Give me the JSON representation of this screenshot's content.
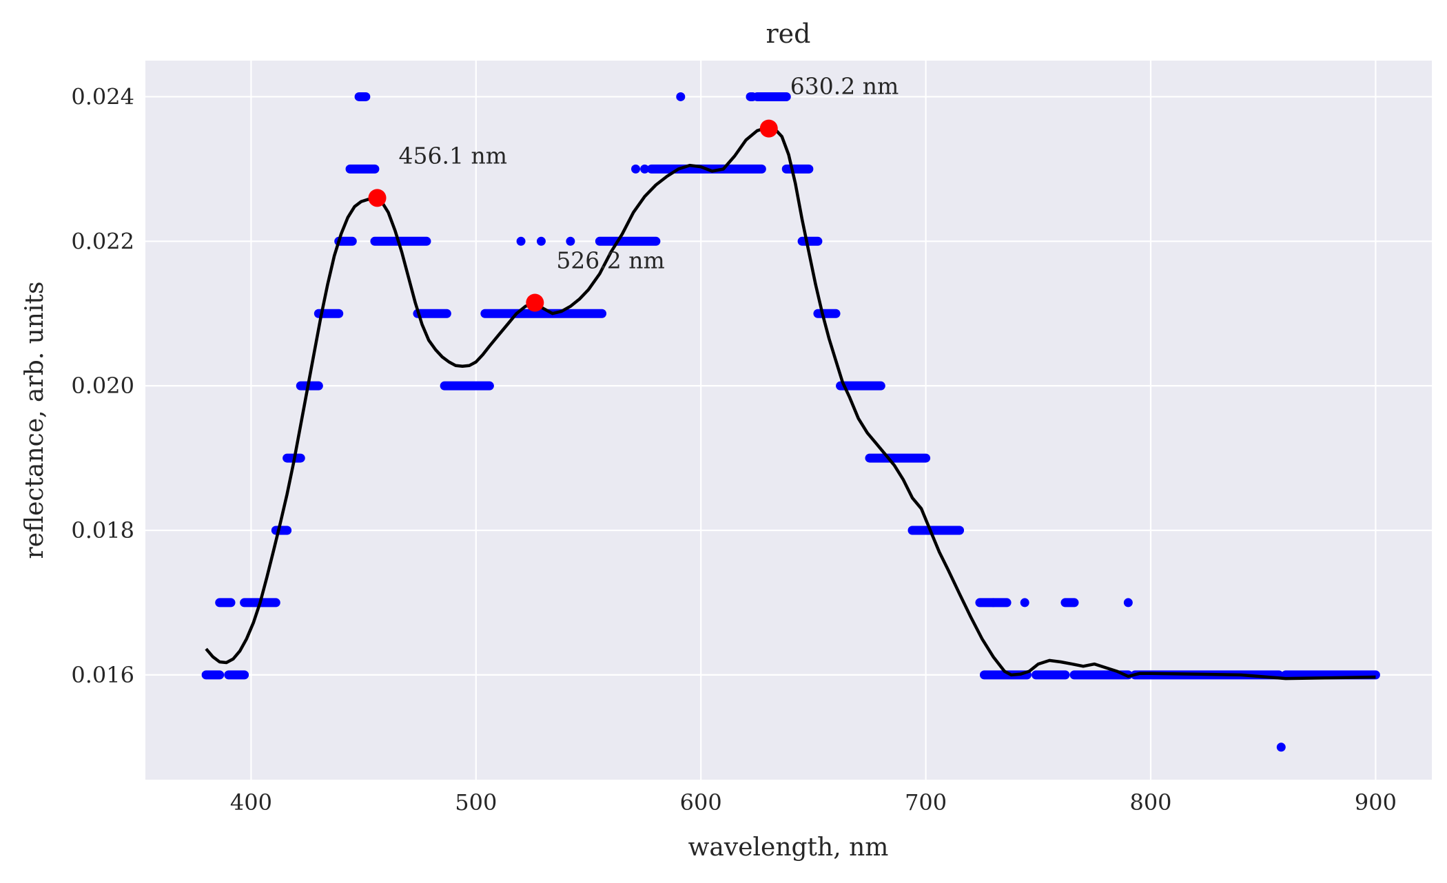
{
  "chart_data": {
    "type": "scatter",
    "title": "red",
    "xlabel": "wavelength, nm",
    "ylabel": "reflectance, arb. units",
    "xlim": [
      353,
      925
    ],
    "ylim": [
      0.01455,
      0.0245
    ],
    "xticks": [
      400,
      500,
      600,
      700,
      800,
      900
    ],
    "yticks": [
      0.016,
      0.018,
      0.02,
      0.022,
      0.024
    ],
    "xtick_labels": [
      "400",
      "500",
      "600",
      "700",
      "800",
      "900"
    ],
    "ytick_labels": [
      "0.016",
      "0.018",
      "0.020",
      "0.022",
      "0.024"
    ],
    "grid": true,
    "colors": {
      "background": "#eaeaf2",
      "grid": "#ffffff",
      "measured": "#0000ff",
      "smoothed": "#000000",
      "peaks": "#ff0000",
      "text": "#262626"
    },
    "measured_segments": [
      {
        "y": 0.016,
        "ranges": [
          [
            380,
            386
          ],
          [
            390,
            397
          ],
          [
            726,
            745
          ],
          [
            749,
            762
          ],
          [
            766,
            790
          ],
          [
            793,
            857
          ],
          [
            860,
            900
          ]
        ]
      },
      {
        "y": 0.017,
        "ranges": [
          [
            386,
            391
          ],
          [
            397,
            411
          ],
          [
            724,
            736
          ],
          [
            762,
            766
          ]
        ]
      },
      {
        "y": 0.018,
        "ranges": [
          [
            411,
            416
          ],
          [
            694,
            715
          ]
        ]
      },
      {
        "y": 0.019,
        "ranges": [
          [
            416,
            422
          ],
          [
            675,
            700
          ]
        ]
      },
      {
        "y": 0.02,
        "ranges": [
          [
            422,
            430
          ],
          [
            486,
            506
          ],
          [
            662,
            680
          ]
        ]
      },
      {
        "y": 0.021,
        "ranges": [
          [
            430,
            439
          ],
          [
            474,
            487
          ],
          [
            504,
            556
          ],
          [
            652,
            660
          ]
        ]
      },
      {
        "y": 0.022,
        "ranges": [
          [
            439,
            445
          ],
          [
            455,
            478
          ],
          [
            555,
            580
          ],
          [
            645,
            652
          ]
        ]
      },
      {
        "y": 0.023,
        "ranges": [
          [
            444,
            455
          ],
          [
            578,
            627
          ],
          [
            638,
            648
          ]
        ]
      },
      {
        "y": 0.024,
        "ranges": [
          [
            448,
            451
          ],
          [
            622,
            623
          ],
          [
            625,
            638
          ]
        ]
      }
    ],
    "measured_isolated": [
      {
        "x": 520,
        "y": 0.022
      },
      {
        "x": 529,
        "y": 0.022
      },
      {
        "x": 542,
        "y": 0.022
      },
      {
        "x": 571,
        "y": 0.023
      },
      {
        "x": 575,
        "y": 0.023
      },
      {
        "x": 591,
        "y": 0.024
      },
      {
        "x": 730,
        "y": 0.017
      },
      {
        "x": 744,
        "y": 0.017
      },
      {
        "x": 790,
        "y": 0.017
      },
      {
        "x": 858,
        "y": 0.015
      }
    ],
    "smoothed_curve": {
      "x": [
        380,
        383,
        386,
        389,
        392,
        395,
        398,
        401,
        404,
        407,
        410,
        413,
        416,
        419,
        422,
        425,
        428,
        431,
        434,
        437,
        440,
        443,
        446,
        449,
        452,
        455,
        458,
        461,
        464,
        467,
        470,
        473,
        476,
        479,
        482,
        485,
        488,
        491,
        494,
        497,
        500,
        503,
        506,
        510,
        514,
        518,
        522,
        526,
        530,
        534,
        538,
        542,
        546,
        550,
        555,
        560,
        565,
        570,
        575,
        580,
        585,
        590,
        595,
        600,
        605,
        610,
        615,
        620,
        625,
        628,
        630,
        633,
        636,
        639,
        642,
        645,
        648,
        651,
        654,
        657,
        660,
        663,
        666,
        670,
        674,
        678,
        682,
        686,
        690,
        694,
        698,
        702,
        706,
        710,
        715,
        720,
        725,
        730,
        735,
        738,
        742,
        746,
        750,
        755,
        760,
        765,
        770,
        775,
        780,
        785,
        790,
        795,
        800,
        820,
        840,
        860,
        880,
        900
      ],
      "y": [
        0.01636,
        0.01625,
        0.01618,
        0.01617,
        0.01622,
        0.01633,
        0.0165,
        0.01672,
        0.017,
        0.01735,
        0.01772,
        0.0181,
        0.0185,
        0.01895,
        0.01945,
        0.01995,
        0.02045,
        0.02095,
        0.0214,
        0.0218,
        0.0221,
        0.02233,
        0.02248,
        0.02255,
        0.02258,
        0.02259,
        0.02255,
        0.0224,
        0.02215,
        0.02185,
        0.0215,
        0.02115,
        0.02085,
        0.02063,
        0.0205,
        0.0204,
        0.02033,
        0.02028,
        0.02027,
        0.02028,
        0.02033,
        0.02043,
        0.02055,
        0.0207,
        0.02085,
        0.021,
        0.0211,
        0.02114,
        0.02107,
        0.021,
        0.02103,
        0.0211,
        0.0212,
        0.02133,
        0.02155,
        0.02185,
        0.0221,
        0.0224,
        0.02262,
        0.02278,
        0.0229,
        0.023,
        0.02305,
        0.02303,
        0.02297,
        0.023,
        0.02318,
        0.0234,
        0.02353,
        0.02356,
        0.02356,
        0.02355,
        0.02345,
        0.0232,
        0.0228,
        0.0223,
        0.02185,
        0.0214,
        0.021,
        0.02065,
        0.02035,
        0.02005,
        0.01985,
        0.01955,
        0.01935,
        0.0192,
        0.01905,
        0.0189,
        0.0187,
        0.01845,
        0.0183,
        0.018,
        0.0177,
        0.01745,
        0.01712,
        0.0168,
        0.0165,
        0.01625,
        0.01605,
        0.016,
        0.01601,
        0.01605,
        0.01615,
        0.0162,
        0.01618,
        0.01615,
        0.01612,
        0.01615,
        0.0161,
        0.01605,
        0.01598,
        0.01602,
        0.01602,
        0.01601,
        0.016,
        0.01595,
        0.01596,
        0.01597
      ]
    },
    "peaks": [
      {
        "x": 456.1,
        "y": 0.0226,
        "label": "456.1 nm"
      },
      {
        "x": 526.2,
        "y": 0.02115,
        "label": "526.2 nm"
      },
      {
        "x": 630.2,
        "y": 0.02356,
        "label": "630.2 nm"
      }
    ]
  }
}
